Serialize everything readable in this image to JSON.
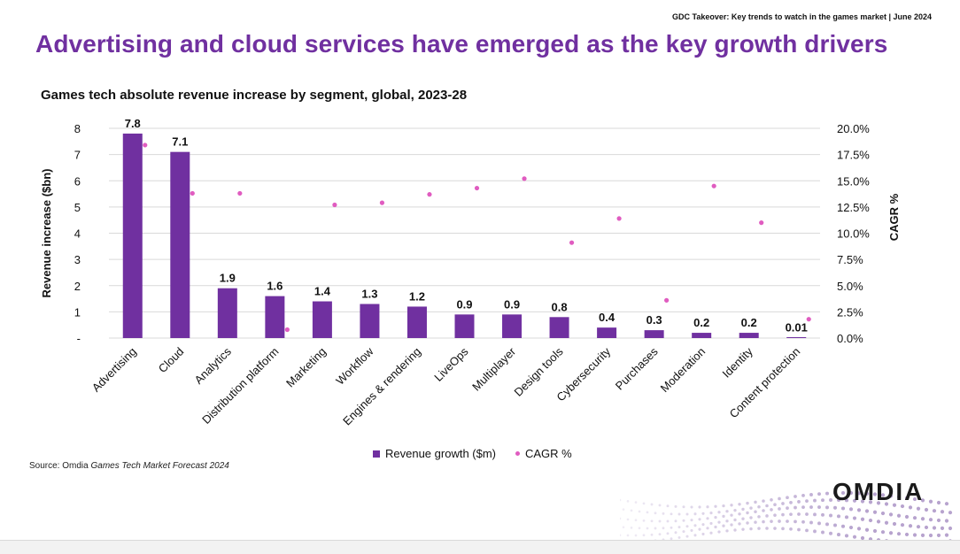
{
  "header_note": "GDC Takeover: Key trends to watch in the games market | June 2024",
  "headline": "Advertising and cloud services have emerged as the key growth drivers",
  "source": {
    "prefix": "Source: Omdia ",
    "title": "Games Tech Market Forecast 2024"
  },
  "logo": "OMDIA",
  "colors": {
    "bar": "#7030a0",
    "dot": "#e05cc0",
    "headline": "#7030a0"
  },
  "chart_data": {
    "type": "bar",
    "title": "Games tech absolute revenue increase by segment, global, 2023-28",
    "ylabel": "Revenue increase ($bn)",
    "y2label": "CAGR %",
    "ylim": [
      0,
      8
    ],
    "y2lim": [
      0,
      20
    ],
    "y_ticks": [
      "-",
      "1",
      "2",
      "3",
      "4",
      "5",
      "6",
      "7",
      "8"
    ],
    "y2_ticks": [
      "0.0%",
      "2.5%",
      "5.0%",
      "7.5%",
      "10.0%",
      "12.5%",
      "15.0%",
      "17.5%",
      "20.0%"
    ],
    "grid": true,
    "legend_position": "bottom",
    "categories": [
      "Advertising",
      "Cloud",
      "Analytics",
      "Distribution platform",
      "Marketing",
      "Workflow",
      "Engines & rendering",
      "LiveOps",
      "Multiplayer",
      "Design tools",
      "Cybersecurity",
      "Purchases",
      "Moderation",
      "Identity",
      "Content protection"
    ],
    "series": [
      {
        "name": "Revenue growth ($m)",
        "type": "bar",
        "axis": "left",
        "values": [
          7.8,
          7.1,
          1.9,
          1.6,
          1.4,
          1.3,
          1.2,
          0.9,
          0.9,
          0.8,
          0.4,
          0.3,
          0.2,
          0.2,
          0.01
        ],
        "labels": [
          "7.8",
          "7.1",
          "1.9",
          "1.6",
          "1.4",
          "1.3",
          "1.2",
          "0.9",
          "0.9",
          "0.8",
          "0.4",
          "0.3",
          "0.2",
          "0.2",
          "0.01"
        ]
      },
      {
        "name": "CAGR %",
        "type": "scatter",
        "axis": "right",
        "values": [
          18.4,
          13.8,
          13.8,
          0.8,
          12.7,
          12.9,
          13.7,
          14.3,
          15.2,
          9.1,
          11.4,
          3.6,
          14.5,
          11.0,
          1.8
        ]
      }
    ]
  }
}
